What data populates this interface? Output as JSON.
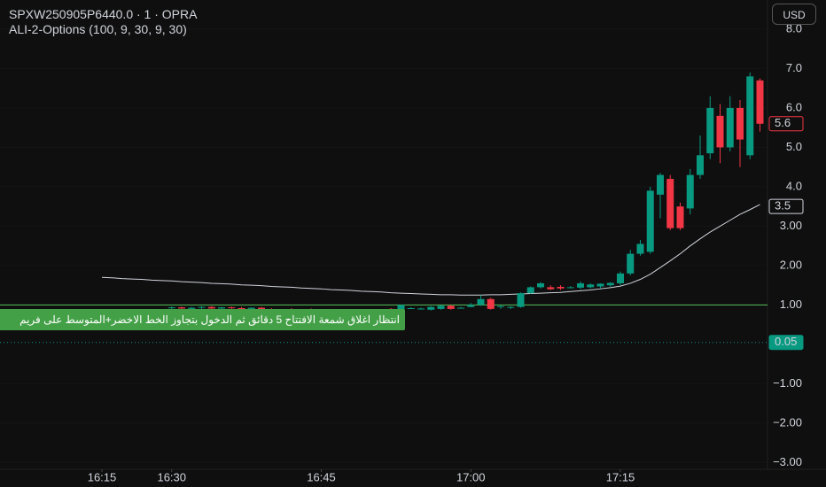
{
  "chart_data": {
    "type": "candlestick",
    "title": "SPXW250905P6440.0 · 1 · OPRA",
    "subtitle": "ALI-2-Options (100, 9, 30, 9, 30)",
    "currency_button": "USD",
    "annotation": "انتظار اغلاق شمعة الافتتاح 5 دقائق ثم الدخول بتجاوز الخط الاخضر+المتوسط على فريم",
    "categories": [
      null,
      null,
      null,
      null,
      null,
      null,
      null,
      null,
      null,
      null,
      null,
      null,
      null,
      null,
      null,
      null,
      null,
      null,
      null,
      null,
      null,
      null,
      null,
      null,
      null,
      null,
      null,
      null,
      null,
      null,
      null,
      null,
      null,
      null,
      null,
      null,
      null,
      null,
      null,
      null,
      null,
      null,
      null,
      null,
      null,
      null,
      null,
      null,
      null,
      null,
      null,
      null,
      null,
      null,
      null,
      null,
      null,
      null,
      null,
      null,
      null,
      null,
      null,
      null,
      null,
      null,
      null
    ],
    "open": [
      null,
      null,
      null,
      null,
      null,
      null,
      null,
      0.92,
      0.94,
      0.9,
      0.93,
      0.95,
      0.91,
      0.94,
      0.92,
      0.9,
      0.93,
      0.89,
      0.86,
      0.88,
      0.86,
      0.88,
      0.85,
      0.87,
      0.84,
      0.86,
      0.82,
      0.85,
      0.8,
      0.9,
      0.75,
      0.92,
      0.9,
      0.88,
      0.9,
      0.98,
      0.93,
      0.95,
      1.0,
      1.15,
      0.97,
      0.95,
      0.95,
      1.3,
      1.45,
      1.45,
      1.46,
      1.45,
      1.44,
      1.45,
      1.47,
      1.5,
      1.55,
      1.8,
      2.3,
      2.35,
      3.8,
      4.2,
      3.5,
      3.45,
      4.3,
      4.85,
      5.8,
      5.0,
      6.0,
      4.8,
      6.7
    ],
    "high": [
      null,
      null,
      null,
      null,
      null,
      null,
      null,
      0.96,
      0.96,
      0.95,
      0.97,
      0.97,
      0.95,
      0.96,
      0.95,
      0.94,
      0.95,
      0.92,
      0.9,
      0.92,
      0.9,
      0.91,
      0.89,
      0.9,
      0.88,
      0.89,
      0.87,
      0.88,
      0.84,
      0.92,
      1.0,
      0.94,
      0.93,
      0.97,
      0.99,
      1.0,
      0.95,
      1.05,
      1.25,
      1.18,
      0.99,
      0.97,
      1.32,
      1.47,
      1.58,
      1.5,
      1.5,
      1.48,
      1.6,
      1.55,
      1.55,
      1.58,
      1.85,
      2.4,
      2.65,
      4.0,
      4.35,
      4.3,
      3.6,
      4.45,
      5.3,
      6.3,
      6.1,
      6.3,
      6.2,
      6.9,
      6.75
    ],
    "low": [
      null,
      null,
      null,
      null,
      null,
      null,
      null,
      0.9,
      0.9,
      0.88,
      0.9,
      0.9,
      0.88,
      0.9,
      0.88,
      0.87,
      0.88,
      0.84,
      0.83,
      0.85,
      0.83,
      0.84,
      0.82,
      0.83,
      0.8,
      0.8,
      0.8,
      0.78,
      0.76,
      0.78,
      0.72,
      0.9,
      0.88,
      0.86,
      0.88,
      0.88,
      0.91,
      0.94,
      0.98,
      0.88,
      0.9,
      0.9,
      0.93,
      1.28,
      1.42,
      1.38,
      1.38,
      1.42,
      1.4,
      1.42,
      1.42,
      1.46,
      1.5,
      1.75,
      2.25,
      2.3,
      3.2,
      2.9,
      2.9,
      3.3,
      4.2,
      4.7,
      4.6,
      4.9,
      4.5,
      4.7,
      5.4
    ],
    "close": [
      null,
      null,
      null,
      null,
      null,
      null,
      null,
      0.94,
      0.91,
      0.93,
      0.95,
      0.91,
      0.94,
      0.92,
      0.9,
      0.93,
      0.89,
      0.86,
      0.88,
      0.86,
      0.88,
      0.85,
      0.87,
      0.84,
      0.86,
      0.82,
      0.85,
      0.8,
      0.82,
      0.8,
      1.0,
      0.92,
      0.91,
      0.95,
      0.98,
      0.9,
      0.93,
      1.0,
      1.15,
      0.9,
      0.97,
      0.95,
      1.3,
      1.45,
      1.55,
      1.4,
      1.42,
      1.45,
      1.55,
      1.52,
      1.54,
      1.56,
      1.8,
      2.3,
      2.55,
      3.9,
      4.3,
      2.95,
      2.95,
      4.3,
      4.8,
      6.0,
      5.0,
      6.0,
      5.2,
      6.8,
      5.6
    ],
    "ma": [
      1.7,
      1.69,
      1.67,
      1.66,
      1.65,
      1.63,
      1.62,
      1.61,
      1.59,
      1.58,
      1.57,
      1.55,
      1.54,
      1.53,
      1.51,
      1.5,
      1.49,
      1.47,
      1.46,
      1.45,
      1.43,
      1.42,
      1.41,
      1.39,
      1.38,
      1.37,
      1.35,
      1.34,
      1.33,
      1.31,
      1.3,
      1.29,
      1.28,
      1.27,
      1.26,
      1.26,
      1.25,
      1.25,
      1.25,
      1.26,
      1.26,
      1.27,
      1.28,
      1.29,
      1.3,
      1.31,
      1.32,
      1.34,
      1.36,
      1.38,
      1.41,
      1.44,
      1.48,
      1.55,
      1.65,
      1.78,
      1.95,
      2.12,
      2.3,
      2.5,
      2.68,
      2.85,
      3.0,
      3.15,
      3.3,
      3.42,
      3.55
    ],
    "up_color": "#089981",
    "down_color": "#f23645",
    "ma_color": "#d1d4dc",
    "hline_color": "#4caf50",
    "hline": 1,
    "dotted_line": 0.05,
    "last_price": 5.6,
    "ma_last": 3.5,
    "ylim": [
      -3.17,
      8.74
    ],
    "yticks": [
      {
        "value": -3,
        "label": "−3.00"
      },
      {
        "value": -2,
        "label": "−2.00"
      },
      {
        "value": -1,
        "label": "−1.00"
      },
      {
        "value": 1,
        "label": "1.00"
      },
      {
        "value": 2,
        "label": "2.00"
      },
      {
        "value": 3,
        "label": "3.00"
      },
      {
        "value": 4,
        "label": "4.0"
      },
      {
        "value": 5,
        "label": "5.0"
      },
      {
        "value": 6,
        "label": "6.0"
      },
      {
        "value": 7,
        "label": "7.0"
      },
      {
        "value": 8,
        "label": "8.0"
      }
    ],
    "xticks": [
      {
        "value": 0,
        "label": "16:15"
      },
      {
        "value": 7,
        "label": "16:30"
      },
      {
        "value": 22,
        "label": "16:45"
      },
      {
        "value": 37,
        "label": "17:00"
      },
      {
        "value": 52,
        "label": "17:15"
      }
    ]
  }
}
